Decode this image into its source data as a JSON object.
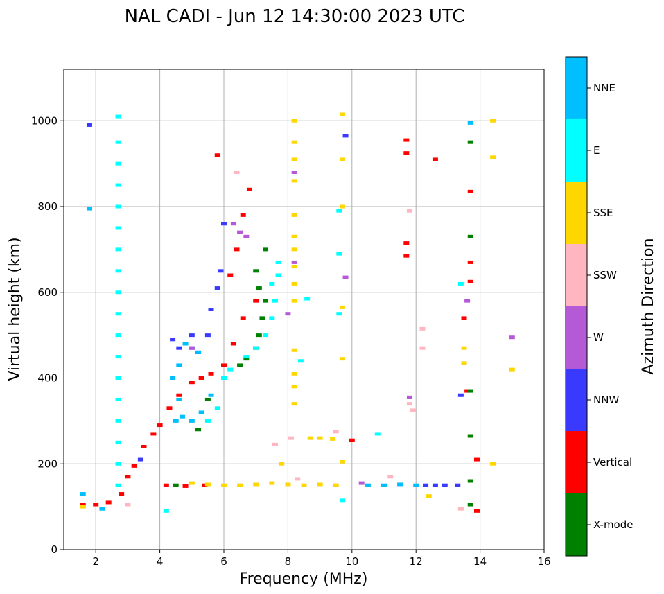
{
  "chart_data": {
    "type": "scatter",
    "title": "NAL CADI - Jun 12 14:30:00 2023 UTC",
    "xlabel": "Frequency (MHz)",
    "ylabel": "Virtual height (km)",
    "xlim": [
      1,
      16
    ],
    "ylim": [
      0,
      1120
    ],
    "x_ticks": [
      2,
      4,
      6,
      8,
      10,
      12,
      14,
      16
    ],
    "x_tick_labels": [
      "2",
      "4",
      "6",
      "8",
      "10",
      "12",
      "14",
      "16"
    ],
    "y_ticks": [
      0,
      200,
      400,
      600,
      800,
      1000
    ],
    "y_tick_labels": [
      "0",
      "200",
      "400",
      "600",
      "800",
      "1000"
    ],
    "grid": true,
    "colorbar": {
      "title": "Azimuth Direction",
      "categories": [
        {
          "name": "X-mode",
          "color": "#008000"
        },
        {
          "name": "Vertical",
          "color": "#ff0000"
        },
        {
          "name": "NNW",
          "color": "#3a3aff"
        },
        {
          "name": "W",
          "color": "#b45ad6"
        },
        {
          "name": "SSW",
          "color": "#ffb6c1"
        },
        {
          "name": "SSE",
          "color": "#ffd700"
        },
        {
          "name": "E",
          "color": "#00ffff"
        },
        {
          "name": "NNE",
          "color": "#00bfff"
        }
      ]
    },
    "series": [
      {
        "name": "Vertical",
        "color": "#ff0000",
        "points": [
          [
            1.6,
            105
          ],
          [
            2.0,
            105
          ],
          [
            2.4,
            110
          ],
          [
            2.8,
            130
          ],
          [
            3.0,
            170
          ],
          [
            3.2,
            195
          ],
          [
            3.5,
            240
          ],
          [
            3.8,
            270
          ],
          [
            4.0,
            290
          ],
          [
            4.3,
            330
          ],
          [
            4.6,
            360
          ],
          [
            5.0,
            390
          ],
          [
            5.3,
            400
          ],
          [
            5.6,
            410
          ],
          [
            6.0,
            430
          ],
          [
            6.3,
            480
          ],
          [
            6.6,
            540
          ],
          [
            7.0,
            580
          ],
          [
            4.2,
            150
          ],
          [
            4.8,
            148
          ],
          [
            5.4,
            150
          ],
          [
            6.6,
            780
          ],
          [
            6.4,
            700
          ],
          [
            6.2,
            640
          ],
          [
            12.6,
            910
          ],
          [
            13.7,
            835
          ],
          [
            13.7,
            670
          ],
          [
            13.7,
            625
          ],
          [
            13.5,
            540
          ],
          [
            13.6,
            370
          ],
          [
            13.9,
            210
          ],
          [
            13.9,
            90
          ],
          [
            11.7,
            955
          ],
          [
            11.7,
            925
          ],
          [
            11.7,
            715
          ],
          [
            11.7,
            685
          ],
          [
            10.0,
            255
          ],
          [
            6.8,
            840
          ],
          [
            5.8,
            920
          ]
        ]
      },
      {
        "name": "X-mode",
        "color": "#008000",
        "points": [
          [
            6.5,
            430
          ],
          [
            6.7,
            445
          ],
          [
            7.0,
            470
          ],
          [
            7.1,
            500
          ],
          [
            7.2,
            540
          ],
          [
            7.3,
            580
          ],
          [
            7.1,
            610
          ],
          [
            7.0,
            650
          ],
          [
            7.3,
            700
          ],
          [
            5.5,
            350
          ],
          [
            5.2,
            280
          ],
          [
            13.7,
            950
          ],
          [
            13.7,
            730
          ],
          [
            13.7,
            370
          ],
          [
            13.7,
            265
          ],
          [
            13.7,
            160
          ],
          [
            13.7,
            105
          ],
          [
            4.5,
            150
          ]
        ]
      },
      {
        "name": "NNW",
        "color": "#3a3aff",
        "points": [
          [
            4.6,
            470
          ],
          [
            5.0,
            470
          ],
          [
            5.2,
            460
          ],
          [
            5.5,
            500
          ],
          [
            5.6,
            560
          ],
          [
            5.8,
            610
          ],
          [
            5.9,
            650
          ],
          [
            6.0,
            760
          ],
          [
            3.4,
            210
          ],
          [
            12.3,
            150
          ],
          [
            12.6,
            150
          ],
          [
            12.9,
            150
          ],
          [
            13.3,
            150
          ],
          [
            13.4,
            360
          ],
          [
            9.8,
            965
          ],
          [
            1.8,
            990
          ],
          [
            5.0,
            500
          ],
          [
            4.4,
            490
          ]
        ]
      },
      {
        "name": "W",
        "color": "#b45ad6",
        "points": [
          [
            6.3,
            760
          ],
          [
            6.5,
            740
          ],
          [
            6.7,
            730
          ],
          [
            8.2,
            880
          ],
          [
            8.2,
            670
          ],
          [
            8.0,
            550
          ],
          [
            9.8,
            635
          ],
          [
            11.8,
            355
          ],
          [
            13.6,
            580
          ],
          [
            15.0,
            495
          ],
          [
            5.0,
            470
          ],
          [
            10.3,
            155
          ]
        ]
      },
      {
        "name": "SSW",
        "color": "#ffb6c1",
        "points": [
          [
            6.4,
            880
          ],
          [
            7.6,
            245
          ],
          [
            8.1,
            260
          ],
          [
            9.5,
            275
          ],
          [
            11.8,
            790
          ],
          [
            11.8,
            340
          ],
          [
            11.9,
            325
          ],
          [
            12.2,
            515
          ],
          [
            12.2,
            470
          ],
          [
            13.4,
            95
          ],
          [
            3.0,
            105
          ],
          [
            8.3,
            165
          ],
          [
            11.2,
            170
          ]
        ]
      },
      {
        "name": "SSE",
        "color": "#ffd700",
        "points": [
          [
            1.6,
            100
          ],
          [
            5.0,
            155
          ],
          [
            5.5,
            152
          ],
          [
            6.0,
            150
          ],
          [
            6.5,
            150
          ],
          [
            7.0,
            152
          ],
          [
            7.5,
            155
          ],
          [
            8.0,
            152
          ],
          [
            8.5,
            150
          ],
          [
            9.0,
            152
          ],
          [
            9.5,
            150
          ],
          [
            8.2,
            1000
          ],
          [
            8.2,
            950
          ],
          [
            8.2,
            910
          ],
          [
            8.2,
            860
          ],
          [
            8.2,
            780
          ],
          [
            8.2,
            730
          ],
          [
            8.2,
            700
          ],
          [
            8.2,
            660
          ],
          [
            8.2,
            620
          ],
          [
            8.2,
            580
          ],
          [
            8.2,
            465
          ],
          [
            8.2,
            410
          ],
          [
            8.2,
            380
          ],
          [
            8.2,
            340
          ],
          [
            8.7,
            260
          ],
          [
            9.0,
            260
          ],
          [
            9.4,
            258
          ],
          [
            9.7,
            1015
          ],
          [
            9.7,
            910
          ],
          [
            9.7,
            800
          ],
          [
            9.7,
            565
          ],
          [
            9.7,
            445
          ],
          [
            9.7,
            205
          ],
          [
            13.5,
            470
          ],
          [
            13.5,
            435
          ],
          [
            14.4,
            1000
          ],
          [
            14.4,
            915
          ],
          [
            14.4,
            200
          ],
          [
            15.0,
            420
          ],
          [
            12.4,
            125
          ],
          [
            7.8,
            200
          ]
        ]
      },
      {
        "name": "E",
        "color": "#00ffff",
        "points": [
          [
            2.7,
            1010
          ],
          [
            2.7,
            950
          ],
          [
            2.7,
            900
          ],
          [
            2.7,
            850
          ],
          [
            2.7,
            800
          ],
          [
            2.7,
            750
          ],
          [
            2.7,
            700
          ],
          [
            2.7,
            650
          ],
          [
            2.7,
            600
          ],
          [
            2.7,
            550
          ],
          [
            2.7,
            500
          ],
          [
            2.7,
            450
          ],
          [
            2.7,
            400
          ],
          [
            2.7,
            350
          ],
          [
            2.7,
            300
          ],
          [
            2.7,
            250
          ],
          [
            2.7,
            200
          ],
          [
            2.7,
            150
          ],
          [
            6.0,
            400
          ],
          [
            6.2,
            420
          ],
          [
            6.7,
            450
          ],
          [
            7.0,
            470
          ],
          [
            7.3,
            500
          ],
          [
            7.5,
            540
          ],
          [
            7.6,
            580
          ],
          [
            7.7,
            640
          ],
          [
            7.7,
            670
          ],
          [
            5.8,
            330
          ],
          [
            5.5,
            300
          ],
          [
            9.6,
            790
          ],
          [
            9.6,
            690
          ],
          [
            9.6,
            550
          ],
          [
            13.4,
            620
          ],
          [
            10.8,
            270
          ],
          [
            8.4,
            440
          ],
          [
            8.6,
            585
          ],
          [
            4.2,
            90
          ],
          [
            9.7,
            115
          ],
          [
            7.5,
            620
          ]
        ]
      },
      {
        "name": "NNE",
        "color": "#00bfff",
        "points": [
          [
            4.5,
            300
          ],
          [
            4.7,
            310
          ],
          [
            5.0,
            300
          ],
          [
            5.3,
            320
          ],
          [
            5.6,
            360
          ],
          [
            4.6,
            350
          ],
          [
            4.4,
            400
          ],
          [
            4.6,
            430
          ],
          [
            4.8,
            480
          ],
          [
            5.2,
            460
          ],
          [
            2.2,
            95
          ],
          [
            1.6,
            130
          ],
          [
            10.5,
            150
          ],
          [
            11.0,
            150
          ],
          [
            11.5,
            152
          ],
          [
            12.0,
            150
          ],
          [
            13.7,
            995
          ],
          [
            1.8,
            795
          ]
        ]
      }
    ]
  }
}
